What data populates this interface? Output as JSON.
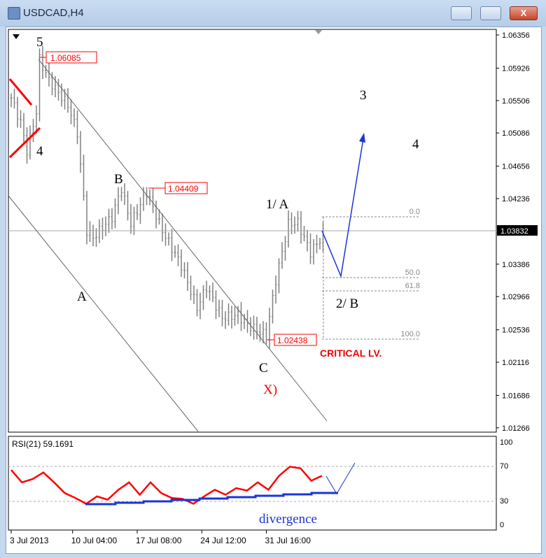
{
  "window": {
    "title": "USDCAD,H4",
    "minimize": "minimize",
    "maximize": "maximize",
    "close": "X"
  },
  "price_axis": {
    "labels": [
      "1.06356",
      "1.05926",
      "1.05506",
      "1.05086",
      "1.04656",
      "1.04236",
      "1.03386",
      "1.02966",
      "1.02536",
      "1.02116",
      "1.01686",
      "1.01266"
    ],
    "current": "1.03832"
  },
  "time_axis": {
    "labels": [
      "3 Jul 2013",
      "10 Jul 04:00",
      "17 Jul 08:00",
      "24 Jul 12:00",
      "31 Jul 16:00"
    ]
  },
  "price_path": [
    [
      0,
      1.0554
    ],
    [
      3,
      1.0522
    ],
    [
      5,
      1.0486
    ],
    [
      8,
      1.0536
    ],
    [
      9,
      1.0604
    ],
    [
      12,
      1.0577
    ],
    [
      18,
      1.0545
    ],
    [
      21,
      1.0509
    ],
    [
      24,
      1.0382
    ],
    [
      26,
      1.0373
    ],
    [
      32,
      1.04
    ],
    [
      35,
      1.0437
    ],
    [
      38,
      1.0391
    ],
    [
      43,
      1.0432
    ],
    [
      48,
      1.0382
    ],
    [
      54,
      1.0337
    ],
    [
      59,
      1.0282
    ],
    [
      62,
      1.0309
    ],
    [
      67,
      1.0269
    ],
    [
      72,
      1.0273
    ],
    [
      75,
      1.026
    ],
    [
      81,
      1.0246
    ],
    [
      84,
      1.0318
    ],
    [
      88,
      1.0391
    ],
    [
      91,
      1.0392
    ],
    [
      95,
      1.0354
    ],
    [
      99,
      1.0376
    ]
  ],
  "price_tags": {
    "high": "1.06085",
    "b_high": "1.04409",
    "low": "1.02438"
  },
  "waves": {
    "w5": "5",
    "w4": "4",
    "wA": "A",
    "wB": "B",
    "w1A": "1/ A",
    "wC": "C",
    "wX": "X)",
    "w3": "3",
    "w4r": "4",
    "w2B": "2/ B"
  },
  "fib": {
    "f0": "0.0",
    "f50": "50.0",
    "f618": "61.8",
    "f100": "100.0"
  },
  "critical": "CRITICAL LV.",
  "rsi": {
    "label": "RSI(21) 59.1691",
    "levels": [
      "100",
      "70",
      "30",
      "0"
    ],
    "values": [
      66,
      51,
      55,
      63,
      51,
      38,
      32,
      25,
      34,
      30,
      42,
      51,
      36,
      51,
      38,
      32,
      31,
      25,
      34,
      42,
      36,
      44,
      41,
      51,
      42,
      59,
      70,
      68,
      53,
      59
    ],
    "divergence": "divergence"
  },
  "colors": {
    "bull": "#ff0000",
    "arrow": "#1a35d8",
    "bars": "#808080"
  }
}
